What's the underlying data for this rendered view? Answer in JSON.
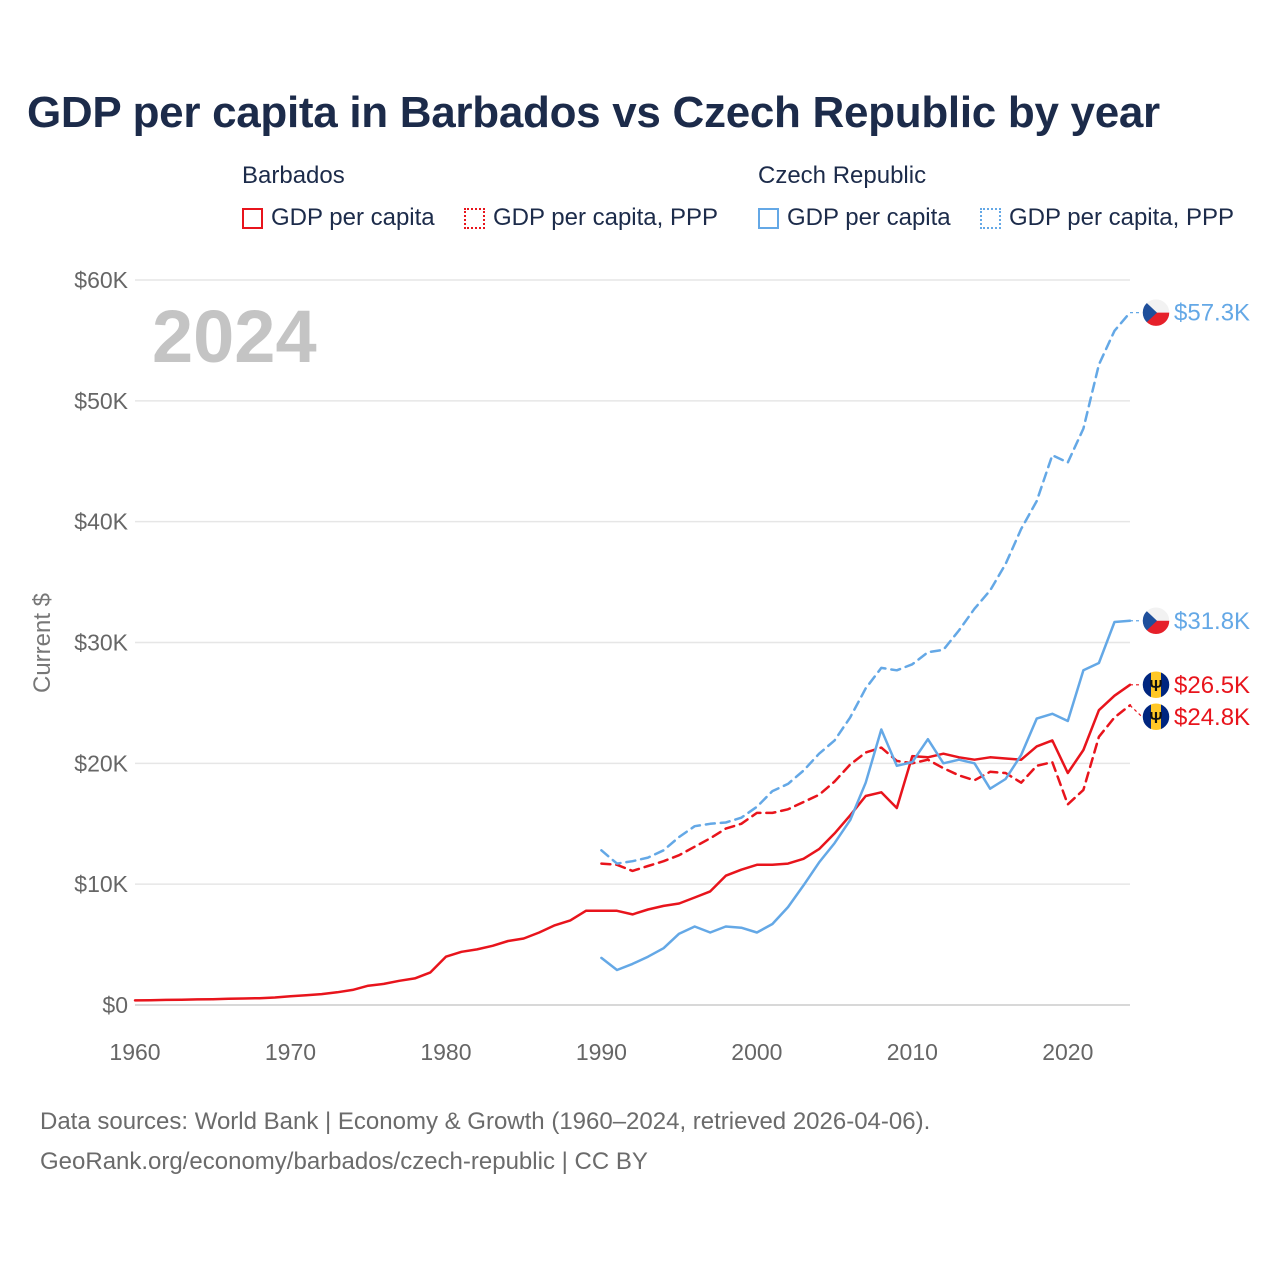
{
  "title": "GDP per capita in Barbados vs Czech Republic by year",
  "legend": {
    "barbados": {
      "name": "Barbados",
      "solid": "GDP per capita",
      "dashed": "GDP per capita, PPP"
    },
    "czech": {
      "name": "Czech Republic",
      "solid": "GDP per capita",
      "dashed": "GDP per capita, PPP"
    }
  },
  "colors": {
    "barbados": "#e8141c",
    "czech": "#64a8e6",
    "title": "#1c2b4a",
    "grid": "#e6e6e6",
    "axis_text": "#666666",
    "year_watermark": "#c4c4c4"
  },
  "footer": {
    "line1": "Data sources: World Bank | Economy & Growth (1960–2024, retrieved 2026-04-06).",
    "line2": "GeoRank.org/economy/barbados/czech-republic | CC BY"
  },
  "chart_data": {
    "type": "line",
    "title": "GDP per capita in Barbados vs Czech Republic by year",
    "year_label": "2024",
    "xlabel": "",
    "ylabel": "Current $",
    "xlim": [
      1960,
      2024
    ],
    "ylim": [
      0,
      60000
    ],
    "grid": true,
    "legend_position": "top",
    "x_ticks": [
      1960,
      1970,
      1980,
      1990,
      2000,
      2010,
      2020
    ],
    "x_tick_labels": [
      "1960",
      "1970",
      "1980",
      "1990",
      "2000",
      "2010",
      "2020"
    ],
    "y_ticks": [
      0,
      10000,
      20000,
      30000,
      40000,
      50000,
      60000
    ],
    "y_tick_labels": [
      "$0",
      "$10K",
      "$20K",
      "$30K",
      "$40K",
      "$50K",
      "$60K"
    ],
    "series": [
      {
        "name": "Barbados GDP per capita",
        "country": "barbados",
        "style": "solid",
        "end_label": "$26.5K",
        "end_value": 26500,
        "x": [
          1960,
          1961,
          1962,
          1963,
          1964,
          1965,
          1966,
          1967,
          1968,
          1969,
          1970,
          1971,
          1972,
          1973,
          1974,
          1975,
          1976,
          1977,
          1978,
          1979,
          1980,
          1981,
          1982,
          1983,
          1984,
          1985,
          1986,
          1987,
          1988,
          1989,
          1990,
          1991,
          1992,
          1993,
          1994,
          1995,
          1996,
          1997,
          1998,
          1999,
          2000,
          2001,
          2002,
          2003,
          2004,
          2005,
          2006,
          2007,
          2008,
          2009,
          2010,
          2011,
          2012,
          2013,
          2014,
          2015,
          2016,
          2017,
          2018,
          2019,
          2020,
          2021,
          2022,
          2023,
          2024
        ],
        "values": [
          380,
          400,
          420,
          440,
          460,
          480,
          520,
          540,
          560,
          620,
          720,
          800,
          900,
          1050,
          1250,
          1600,
          1750,
          2000,
          2200,
          2700,
          4000,
          4400,
          4600,
          4900,
          5300,
          5500,
          6000,
          6600,
          7000,
          7800,
          7800,
          7800,
          7500,
          7900,
          8200,
          8400,
          8900,
          9400,
          10700,
          11200,
          11600,
          11600,
          11700,
          12100,
          12900,
          14200,
          15700,
          17300,
          17600,
          16300,
          20600,
          20500,
          20800,
          20500,
          20300,
          20500,
          20400,
          20300,
          21400,
          21900,
          19200,
          21100,
          24400,
          25600,
          26500
        ]
      },
      {
        "name": "Barbados GDP per capita, PPP",
        "country": "barbados",
        "style": "dashed",
        "end_label": "$24.8K",
        "end_value": 24800,
        "x": [
          1990,
          1991,
          1992,
          1993,
          1994,
          1995,
          1996,
          1997,
          1998,
          1999,
          2000,
          2001,
          2002,
          2003,
          2004,
          2005,
          2006,
          2007,
          2008,
          2009,
          2010,
          2011,
          2012,
          2013,
          2014,
          2015,
          2016,
          2017,
          2018,
          2019,
          2020,
          2021,
          2022,
          2023,
          2024
        ],
        "values": [
          11700,
          11600,
          11100,
          11500,
          11900,
          12400,
          13100,
          13800,
          14600,
          15000,
          15900,
          15900,
          16200,
          16800,
          17400,
          18500,
          19900,
          20900,
          21300,
          20200,
          20000,
          20300,
          19600,
          19000,
          18600,
          19300,
          19200,
          18400,
          19800,
          20100,
          16600,
          17800,
          22200,
          23800,
          24800
        ]
      },
      {
        "name": "Czech Republic GDP per capita",
        "country": "czech",
        "style": "solid",
        "end_label": "$31.8K",
        "end_value": 31800,
        "x": [
          1990,
          1991,
          1992,
          1993,
          1994,
          1995,
          1996,
          1997,
          1998,
          1999,
          2000,
          2001,
          2002,
          2003,
          2004,
          2005,
          2006,
          2007,
          2008,
          2009,
          2010,
          2011,
          2012,
          2013,
          2014,
          2015,
          2016,
          2017,
          2018,
          2019,
          2020,
          2021,
          2022,
          2023,
          2024
        ],
        "values": [
          3900,
          2900,
          3400,
          4000,
          4700,
          5900,
          6500,
          6000,
          6500,
          6400,
          6000,
          6700,
          8100,
          9900,
          11800,
          13400,
          15300,
          18400,
          22800,
          19800,
          20100,
          22000,
          20000,
          20300,
          20000,
          17900,
          18700,
          20700,
          23700,
          24100,
          23500,
          27700,
          28300,
          31700,
          31800
        ]
      },
      {
        "name": "Czech Republic GDP per capita, PPP",
        "country": "czech",
        "style": "dashed",
        "end_label": "$57.3K",
        "end_value": 57300,
        "x": [
          1990,
          1991,
          1992,
          1993,
          1994,
          1995,
          1996,
          1997,
          1998,
          1999,
          2000,
          2001,
          2002,
          2003,
          2004,
          2005,
          2006,
          2007,
          2008,
          2009,
          2010,
          2011,
          2012,
          2013,
          2014,
          2015,
          2016,
          2017,
          2018,
          2019,
          2020,
          2021,
          2022,
          2023,
          2024
        ],
        "values": [
          12800,
          11700,
          11900,
          12200,
          12800,
          13900,
          14800,
          15000,
          15100,
          15500,
          16400,
          17700,
          18300,
          19400,
          20800,
          21900,
          23800,
          26200,
          27900,
          27700,
          28200,
          29200,
          29400,
          31000,
          32800,
          34300,
          36500,
          39400,
          41700,
          45500,
          44900,
          47700,
          53000,
          55800,
          57300
        ]
      }
    ],
    "end_markers": [
      {
        "series": "Czech Republic GDP per capita, PPP",
        "flag": "czech-flag-icon"
      },
      {
        "series": "Czech Republic GDP per capita",
        "flag": "czech-flag-icon"
      },
      {
        "series": "Barbados GDP per capita",
        "flag": "barbados-flag-icon"
      },
      {
        "series": "Barbados GDP per capita, PPP",
        "flag": "barbados-flag-icon"
      }
    ]
  }
}
